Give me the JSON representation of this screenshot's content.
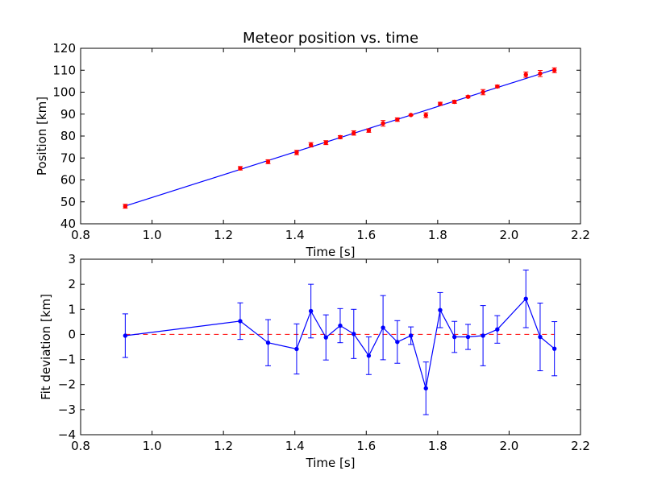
{
  "chart_data": [
    {
      "type": "scatter",
      "title": "Meteor position vs. time",
      "xlabel": "Time [s]",
      "ylabel": "Position [km]",
      "xlim": [
        0.8,
        2.2
      ],
      "ylim": [
        40,
        120
      ],
      "xticks": [
        "0.8",
        "1.0",
        "1.2",
        "1.4",
        "1.6",
        "1.8",
        "2.0",
        "2.2"
      ],
      "yticks": [
        "40",
        "50",
        "60",
        "70",
        "80",
        "90",
        "100",
        "110",
        "120"
      ],
      "grid": false,
      "colors": {
        "points": "#ff0000",
        "fit": "#0000ff"
      },
      "series": [
        {
          "kind": "errorbar-points",
          "x": [
            0.925,
            1.247,
            1.325,
            1.405,
            1.445,
            1.487,
            1.527,
            1.565,
            1.607,
            1.647,
            1.687,
            1.725,
            1.767,
            1.807,
            1.847,
            1.885,
            1.927,
            1.967,
            2.047,
            2.087,
            2.127
          ],
          "y": [
            48.0,
            65.3,
            68.3,
            72.5,
            76.0,
            77.0,
            79.5,
            81.4,
            82.5,
            85.8,
            87.5,
            89.6,
            89.5,
            94.7,
            95.6,
            97.9,
            100.0,
            102.6,
            108.0,
            108.5,
            110.0
          ],
          "yerr": [
            0.9,
            0.8,
            0.9,
            1.0,
            1.0,
            0.9,
            0.7,
            1.0,
            0.8,
            1.3,
            0.8,
            0.3,
            1.1,
            0.7,
            0.7,
            0.5,
            1.2,
            0.6,
            1.2,
            1.4,
            1.1
          ]
        },
        {
          "kind": "fit-line",
          "x": [
            0.925,
            2.127
          ],
          "y": [
            48.1,
            110.4
          ]
        }
      ]
    },
    {
      "type": "line",
      "xlabel": "Time [s]",
      "ylabel": "Fit deviation [km]",
      "xlim": [
        0.8,
        2.2
      ],
      "ylim": [
        -4,
        3
      ],
      "xticks": [
        "0.8",
        "1.0",
        "1.2",
        "1.4",
        "1.6",
        "1.8",
        "2.0",
        "2.2"
      ],
      "yticks": [
        "−4",
        "−3",
        "−2",
        "−1",
        "0",
        "1",
        "2",
        "3"
      ],
      "grid": false,
      "colors": {
        "line": "#0000ff",
        "zero": "#ff0000"
      },
      "series": [
        {
          "kind": "errorbar-line",
          "x": [
            0.925,
            1.247,
            1.325,
            1.405,
            1.445,
            1.487,
            1.527,
            1.565,
            1.607,
            1.647,
            1.687,
            1.725,
            1.767,
            1.807,
            1.847,
            1.885,
            1.927,
            1.967,
            2.047,
            2.087,
            2.127
          ],
          "y": [
            -0.05,
            0.53,
            -0.33,
            -0.58,
            0.93,
            -0.12,
            0.35,
            0.02,
            -0.85,
            0.27,
            -0.3,
            -0.05,
            -2.15,
            0.97,
            -0.1,
            -0.1,
            -0.05,
            0.2,
            1.42,
            -0.1,
            -0.57
          ],
          "yerr": [
            0.87,
            0.73,
            0.92,
            1.0,
            1.07,
            0.9,
            0.68,
            0.98,
            0.75,
            1.28,
            0.85,
            0.35,
            1.05,
            0.7,
            0.62,
            0.5,
            1.2,
            0.55,
            1.15,
            1.35,
            1.08
          ]
        },
        {
          "kind": "zero-line",
          "y": 0,
          "x": [
            0.925,
            2.127
          ]
        }
      ]
    }
  ]
}
